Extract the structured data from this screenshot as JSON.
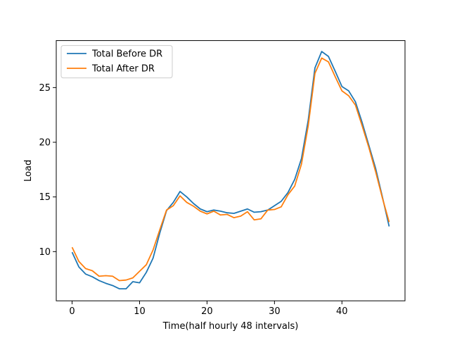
{
  "chart_data": {
    "type": "line",
    "xlabel": "Time(half hourly 48 intervals)",
    "ylabel": "Load",
    "xlim": [
      -2.35,
      49.35
    ],
    "ylim": [
      5.5,
      29.3
    ],
    "xticks": [
      0,
      10,
      20,
      30,
      40
    ],
    "yticks": [
      10,
      15,
      20,
      25
    ],
    "grid": false,
    "legend_position": "upper-left",
    "x": [
      0,
      1,
      2,
      3,
      4,
      5,
      6,
      7,
      8,
      9,
      10,
      11,
      12,
      13,
      14,
      15,
      16,
      17,
      18,
      19,
      20,
      21,
      22,
      23,
      24,
      25,
      26,
      27,
      28,
      29,
      30,
      31,
      32,
      33,
      34,
      35,
      36,
      37,
      38,
      39,
      40,
      41,
      42,
      43,
      44,
      45,
      46,
      47
    ],
    "series": [
      {
        "name": "Total Before DR",
        "color": "#1f77b4",
        "values": [
          9.95,
          8.6,
          7.95,
          7.7,
          7.35,
          7.1,
          6.9,
          6.6,
          6.6,
          7.25,
          7.15,
          8.1,
          9.4,
          11.7,
          13.75,
          14.5,
          15.5,
          15.0,
          14.4,
          13.9,
          13.65,
          13.8,
          13.7,
          13.55,
          13.5,
          13.7,
          13.9,
          13.6,
          13.65,
          13.8,
          14.2,
          14.6,
          15.4,
          16.6,
          18.5,
          22.0,
          26.8,
          28.3,
          27.85,
          26.5,
          25.1,
          24.7,
          23.7,
          21.8,
          19.7,
          17.6,
          15.0,
          12.3
        ]
      },
      {
        "name": "Total After DR",
        "color": "#ff7f0e",
        "values": [
          10.4,
          9.1,
          8.45,
          8.25,
          7.75,
          7.8,
          7.75,
          7.35,
          7.4,
          7.6,
          8.2,
          8.8,
          10.15,
          12.0,
          13.8,
          14.2,
          15.1,
          14.5,
          14.15,
          13.7,
          13.45,
          13.7,
          13.35,
          13.4,
          13.1,
          13.25,
          13.65,
          12.9,
          13.0,
          13.8,
          13.85,
          14.1,
          15.2,
          16.0,
          18.0,
          21.5,
          26.3,
          27.7,
          27.35,
          26.0,
          24.7,
          24.25,
          23.4,
          21.5,
          19.5,
          17.3,
          14.9,
          12.7
        ]
      }
    ]
  }
}
